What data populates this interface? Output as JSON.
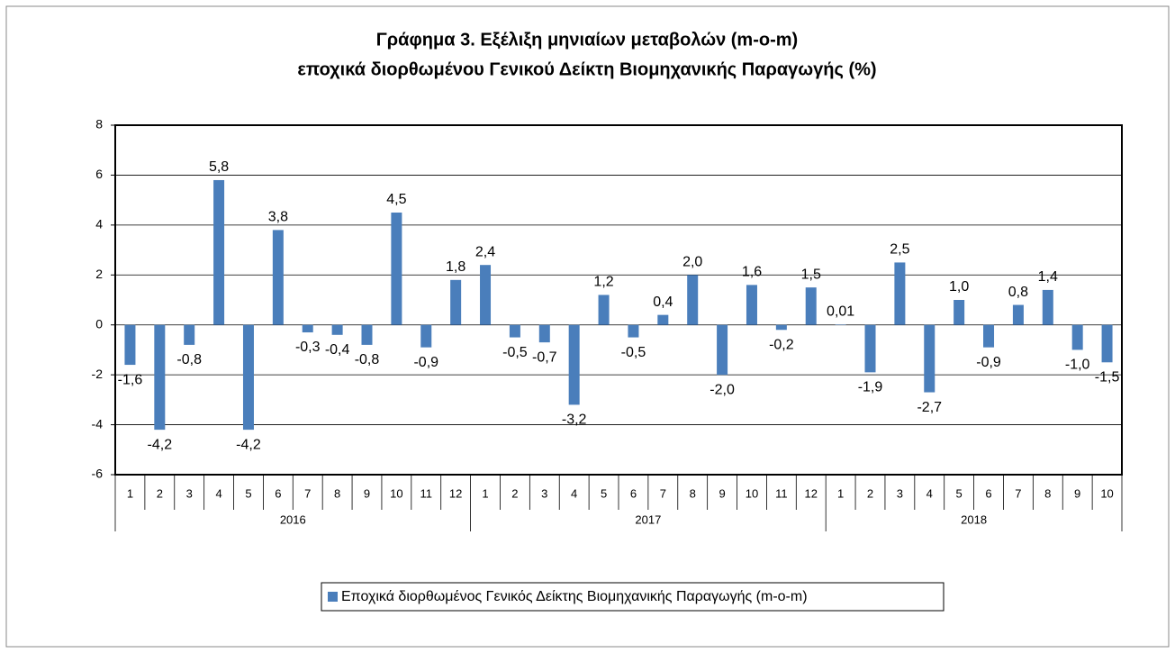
{
  "chart_data": {
    "type": "bar",
    "title": "Γράφημα 3. Εξέλιξη μηνιαίων μεταβολών (m-o-m)",
    "subtitle": "εποχικά διορθωμένου Γενικού Δείκτη Βιομηχανικής Παραγωγής (%)",
    "category_groups": [
      {
        "name": "2016",
        "categories": [
          "1",
          "2",
          "3",
          "4",
          "5",
          "6",
          "7",
          "8",
          "9",
          "10",
          "11",
          "12"
        ]
      },
      {
        "name": "2017",
        "categories": [
          "1",
          "2",
          "3",
          "4",
          "5",
          "6",
          "7",
          "8",
          "9",
          "10",
          "11",
          "12"
        ]
      },
      {
        "name": "2018",
        "categories": [
          "1",
          "2",
          "3",
          "4",
          "5",
          "6",
          "7",
          "8",
          "9",
          "10"
        ]
      }
    ],
    "series": [
      {
        "name": "Εποχικά διορθωμένος Γενικός Δείκτης Βιομηχανικής Παραγωγής (m-o-m)",
        "color": "#4a7ebb",
        "values": [
          -1.6,
          -4.2,
          -0.8,
          5.8,
          -4.2,
          3.8,
          -0.3,
          -0.4,
          -0.8,
          4.5,
          -0.9,
          1.8,
          2.4,
          -0.5,
          -0.7,
          -3.2,
          1.2,
          -0.5,
          0.4,
          2.0,
          -2.0,
          1.6,
          -0.2,
          1.5,
          0.01,
          -1.9,
          2.5,
          -2.7,
          1.0,
          -0.9,
          0.8,
          1.4,
          -1.0,
          -1.5
        ],
        "value_labels": [
          "-1,6",
          "-4,2",
          "-0,8",
          "5,8",
          "-4,2",
          "3,8",
          "-0,3",
          "-0,4",
          "-0,8",
          "4,5",
          "-0,9",
          "1,8",
          "2,4",
          "-0,5",
          "-0,7",
          "-3,2",
          "1,2",
          "-0,5",
          "0,4",
          "2,0",
          "-2,0",
          "1,6",
          "-0,2",
          "1,5",
          "0,01",
          "-1,9",
          "2,5",
          "-2,7",
          "1,0",
          "-0,9",
          "0,8",
          "1,4",
          "-1,0",
          "-1,5"
        ]
      }
    ],
    "ylim": [
      -6,
      8
    ],
    "yticks": [
      -6,
      -4,
      -2,
      0,
      2,
      4,
      6,
      8
    ],
    "grid": true,
    "legend": "bottom"
  }
}
